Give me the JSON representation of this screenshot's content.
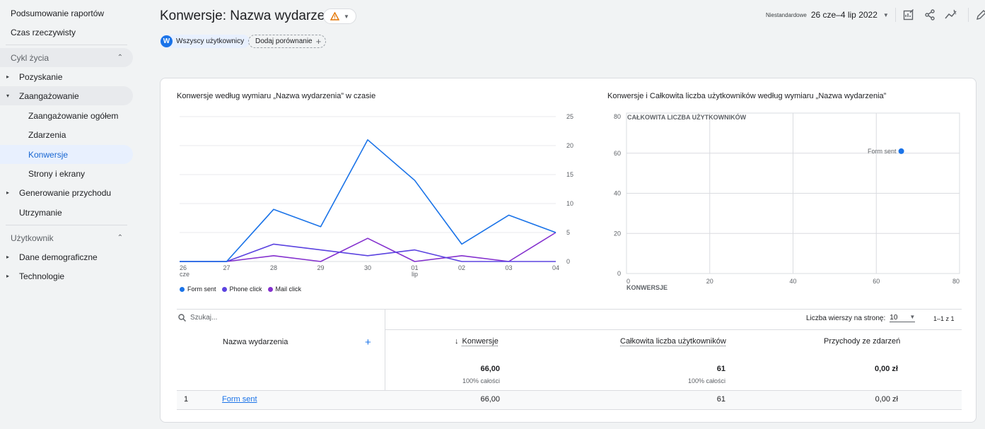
{
  "sidebar": {
    "top_items": [
      "Podsumowanie raportów",
      "Czas rzeczywisty"
    ],
    "lifecycle_label": "Cykl życia",
    "lifecycle_items": {
      "acquisition": "Pozyskanie",
      "engagement": "Zaangażowanie",
      "engagement_sub": [
        "Zaangażowanie ogółem",
        "Zdarzenia",
        "Konwersje",
        "Strony i ekrany"
      ],
      "monetization": "Generowanie przychodu",
      "retention": "Utrzymanie"
    },
    "user_label": "Użytkownik",
    "user_items": [
      "Dane demograficzne",
      "Technologie"
    ]
  },
  "header": {
    "title": "Konwersje: Nazwa wydarzenia",
    "segment_avatar": "W",
    "segment_label": "Wszyscy użytkownicy",
    "compare_label": "Dodaj porównanie",
    "date_prefix": "Niestandardowe",
    "date_range": "26 cze–4 lip 2022"
  },
  "colors": {
    "form_sent": "#1a73e8",
    "phone_click": "#5b43e0",
    "mail_click": "#8430ce",
    "accent": "#1a73e8",
    "warning": "#e37400"
  },
  "line_chart_title": "Konwersje według wymiaru „Nazwa wydarzenia” w czasie",
  "scatter_chart_title": "Konwersje i Całkowita liczba użytkowników według wymiaru „Nazwa wydarzenia”",
  "chart_data": [
    {
      "type": "line",
      "x": [
        "26",
        "27",
        "28",
        "29",
        "30",
        "01",
        "02",
        "03",
        "04"
      ],
      "x_sublabels": {
        "26": "cze",
        "01": "lip"
      },
      "series": [
        {
          "name": "Form sent",
          "values": [
            0,
            0,
            9,
            6,
            21,
            14,
            3,
            8,
            5
          ]
        },
        {
          "name": "Phone click",
          "values": [
            0,
            0,
            3,
            2,
            1,
            2,
            0,
            0,
            0
          ]
        },
        {
          "name": "Mail click",
          "values": [
            0,
            0,
            1,
            0,
            4,
            0,
            1,
            0,
            5
          ]
        }
      ],
      "ylim": [
        0,
        25
      ],
      "yticks": [
        0,
        5,
        10,
        15,
        20,
        25
      ],
      "y_axis_side": "right",
      "legend": "bottom-left",
      "grid": true
    },
    {
      "type": "scatter",
      "xlabel": "KONWERSJE",
      "ylabel": "CAŁKOWITA LICZBA UŻYTKOWNIKÓW",
      "xlim": [
        0,
        80
      ],
      "ylim": [
        0,
        80
      ],
      "xticks": [
        0,
        20,
        40,
        60,
        80
      ],
      "yticks": [
        0,
        20,
        40,
        60,
        80
      ],
      "points": [
        {
          "label": "Form sent",
          "x": 66,
          "y": 61
        }
      ],
      "grid": true
    }
  ],
  "table": {
    "search_placeholder": "Szukaj...",
    "rows_per_page_label": "Liczba wierszy na stronę:",
    "rows_per_page": "10",
    "pagination": "1–1 z 1",
    "col_name": "Nazwa wydarzenia",
    "col_conversions": "Konwersje",
    "col_users": "Całkowita liczba użytkowników",
    "col_revenue": "Przychody ze zdarzeń",
    "totals": {
      "conversions": "66,00",
      "conversions_pct": "100% całości",
      "users": "61",
      "users_pct": "100% całości",
      "revenue": "0,00 zł"
    },
    "rows": [
      {
        "index": "1",
        "name": "Form sent",
        "conversions": "66,00",
        "users": "61",
        "revenue": "0,00 zł"
      }
    ]
  }
}
